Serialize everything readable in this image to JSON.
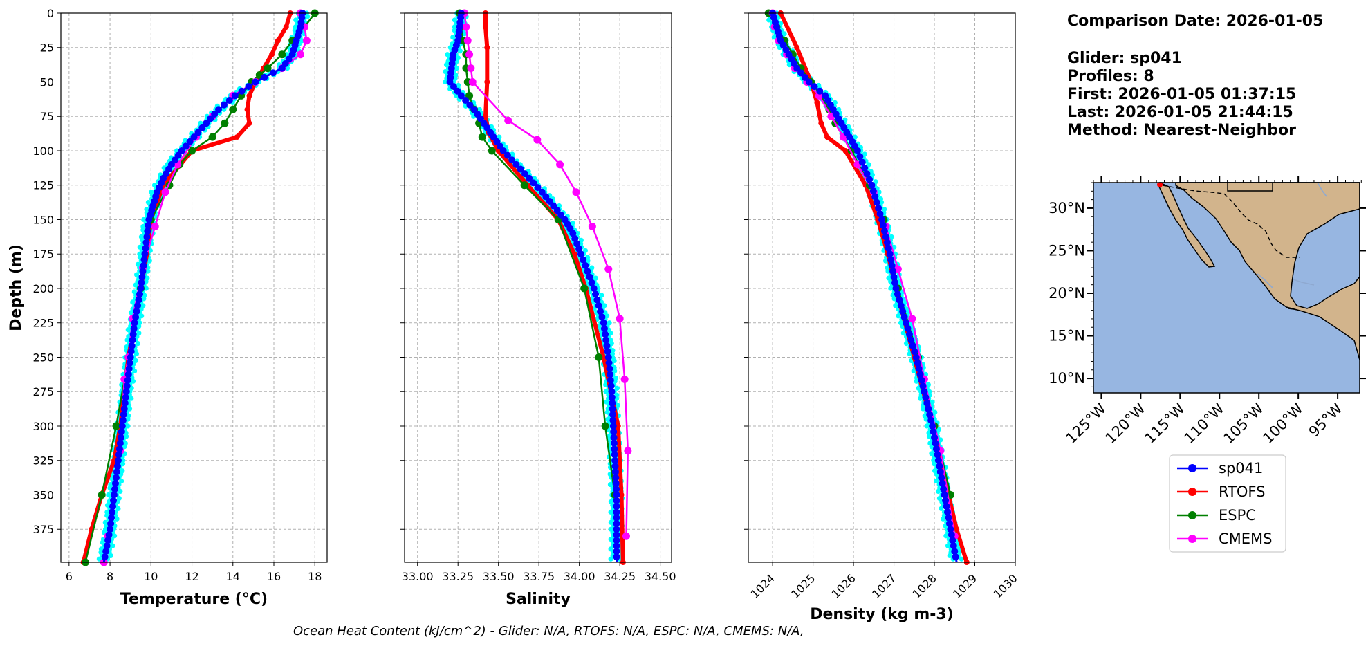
{
  "info": {
    "lines": [
      "Comparison Date: 2026-01-05",
      "",
      "Glider: sp041",
      "Profiles: 8",
      "First: 2026-01-05 01:37:15",
      "Last: 2026-01-05 21:44:15",
      "Method: Nearest-Neighbor"
    ]
  },
  "footer": "Ocean Heat Content (kJ/cm^2) - Glider: N/A,  RTOFS: N/A,  ESPC: N/A,  CMEMS: N/A,",
  "legend": [
    {
      "name": "sp041",
      "color": "#0000ff"
    },
    {
      "name": "RTOFS",
      "color": "#ff0000"
    },
    {
      "name": "ESPC",
      "color": "#008000"
    },
    {
      "name": "CMEMS",
      "color": "#ff00ff"
    }
  ],
  "colors": {
    "glider_raw": "#00ffff",
    "land": "#d2b48c",
    "ocean": "#97b6e1",
    "grid": "#b0b0b0"
  },
  "chart_data": [
    {
      "type": "line",
      "xlabel": "Temperature (°C)",
      "ylabel": "Depth (m)",
      "xlim": [
        5.6,
        18.6
      ],
      "ylim": [
        399,
        0
      ],
      "xticks": [
        6,
        8,
        10,
        12,
        14,
        16,
        18
      ],
      "yticks": [
        0,
        25,
        50,
        75,
        100,
        125,
        150,
        175,
        200,
        225,
        250,
        275,
        300,
        325,
        350,
        375
      ],
      "grid": true,
      "series": [
        {
          "name": "sp041",
          "depth": [
            0,
            10,
            20,
            30,
            40,
            50,
            60,
            70,
            80,
            90,
            100,
            110,
            120,
            130,
            140,
            150,
            175,
            200,
            225,
            250,
            275,
            300,
            325,
            350,
            375,
            399
          ],
          "values": [
            17.4,
            17.3,
            17.1,
            16.9,
            16.4,
            15.1,
            14.1,
            13.3,
            12.7,
            12.1,
            11.5,
            11.0,
            10.6,
            10.3,
            10.1,
            9.9,
            9.7,
            9.5,
            9.2,
            9.0,
            8.8,
            8.6,
            8.4,
            8.2,
            8.0,
            7.7
          ]
        },
        {
          "name": "RTOFS",
          "depth": [
            0,
            10,
            20,
            30,
            40,
            50,
            60,
            70,
            80,
            90,
            100,
            125,
            150,
            175,
            200,
            225,
            250,
            275,
            300,
            325,
            350,
            375,
            399
          ],
          "values": [
            16.8,
            16.6,
            16.2,
            15.9,
            15.5,
            15.1,
            14.8,
            14.7,
            14.8,
            14.2,
            12.0,
            10.6,
            10.0,
            9.8,
            9.5,
            9.2,
            8.9,
            8.7,
            8.5,
            8.2,
            7.6,
            7.1,
            6.7
          ]
        },
        {
          "name": "ESPC",
          "depth": [
            0,
            10,
            20,
            30,
            40,
            45,
            50,
            60,
            70,
            80,
            90,
            100,
            110,
            125,
            150,
            200,
            250,
            300,
            350,
            399
          ],
          "values": [
            18.0,
            17.5,
            16.9,
            16.4,
            15.7,
            15.3,
            14.9,
            14.4,
            14.0,
            13.6,
            13.0,
            12.0,
            11.4,
            10.9,
            10.0,
            9.5,
            8.9,
            8.3,
            7.6,
            6.8
          ]
        },
        {
          "name": "CMEMS",
          "depth": [
            0,
            10,
            20,
            30,
            40,
            50,
            60,
            75,
            90,
            110,
            130,
            155,
            185,
            222,
            250,
            266,
            318,
            380,
            399
          ],
          "values": [
            17.3,
            17.5,
            17.6,
            17.3,
            16.4,
            15.1,
            14.0,
            13.0,
            12.2,
            11.3,
            10.7,
            10.2,
            9.6,
            9.1,
            8.9,
            8.7,
            8.5,
            7.9,
            7.7
          ]
        }
      ]
    },
    {
      "type": "line",
      "xlabel": "Salinity",
      "ylim": [
        399,
        0
      ],
      "xlim": [
        32.92,
        34.57
      ],
      "xticks": [
        33.0,
        33.25,
        33.5,
        33.75,
        34.0,
        34.25,
        34.5
      ],
      "grid": true,
      "series": [
        {
          "name": "sp041",
          "depth": [
            0,
            10,
            20,
            30,
            40,
            50,
            60,
            70,
            80,
            90,
            100,
            110,
            120,
            130,
            140,
            150,
            160,
            175,
            200,
            225,
            250,
            275,
            300,
            325,
            350,
            375,
            399
          ],
          "values": [
            33.27,
            33.26,
            33.25,
            33.22,
            33.21,
            33.2,
            33.27,
            33.35,
            33.41,
            33.47,
            33.53,
            33.61,
            33.69,
            33.77,
            33.84,
            33.91,
            33.96,
            34.01,
            34.09,
            34.15,
            34.18,
            34.2,
            34.21,
            34.22,
            34.23,
            34.23,
            34.23
          ]
        },
        {
          "name": "RTOFS",
          "depth": [
            0,
            10,
            25,
            50,
            75,
            87,
            100,
            125,
            150,
            175,
            200,
            250,
            300,
            350,
            399
          ],
          "values": [
            33.42,
            33.42,
            33.43,
            33.43,
            33.42,
            33.44,
            33.5,
            33.68,
            33.87,
            33.97,
            34.04,
            34.15,
            34.24,
            34.26,
            34.27
          ]
        },
        {
          "name": "ESPC",
          "depth": [
            0,
            10,
            20,
            30,
            40,
            50,
            60,
            70,
            80,
            90,
            100,
            125,
            150,
            200,
            250,
            300,
            350
          ],
          "values": [
            33.26,
            33.27,
            33.28,
            33.3,
            33.3,
            33.31,
            33.32,
            33.35,
            33.38,
            33.4,
            33.46,
            33.66,
            33.87,
            34.03,
            34.12,
            34.16,
            34.22
          ]
        },
        {
          "name": "CMEMS",
          "depth": [
            0,
            10,
            20,
            30,
            40,
            50,
            78,
            92,
            110,
            130,
            155,
            186,
            222,
            266,
            318,
            380
          ],
          "values": [
            33.29,
            33.3,
            33.31,
            33.32,
            33.33,
            33.34,
            33.56,
            33.74,
            33.88,
            33.98,
            34.08,
            34.18,
            34.25,
            34.28,
            34.3,
            34.29
          ]
        }
      ]
    },
    {
      "type": "line",
      "xlabel": "Density (kg m-3)",
      "ylim": [
        399,
        0
      ],
      "xlim": [
        1023.4,
        1030.0
      ],
      "xticks": [
        1024,
        1025,
        1026,
        1027,
        1028,
        1029,
        1030
      ],
      "grid": true,
      "series": [
        {
          "name": "sp041",
          "depth": [
            0,
            10,
            20,
            30,
            40,
            50,
            60,
            70,
            80,
            90,
            100,
            125,
            150,
            175,
            200,
            225,
            250,
            275,
            300,
            325,
            350,
            375,
            399
          ],
          "values": [
            1024.0,
            1024.1,
            1024.2,
            1024.4,
            1024.6,
            1024.9,
            1025.3,
            1025.5,
            1025.7,
            1025.9,
            1026.1,
            1026.45,
            1026.7,
            1026.9,
            1027.05,
            1027.3,
            1027.55,
            1027.75,
            1027.95,
            1028.1,
            1028.25,
            1028.4,
            1028.55
          ]
        },
        {
          "name": "RTOFS",
          "depth": [
            0,
            25,
            50,
            65,
            80,
            90,
            100,
            125,
            150,
            175,
            200,
            250,
            300,
            350,
            375,
            399
          ],
          "values": [
            1024.2,
            1024.6,
            1024.95,
            1025.1,
            1025.2,
            1025.35,
            1025.8,
            1026.3,
            1026.6,
            1026.85,
            1027.05,
            1027.5,
            1027.95,
            1028.35,
            1028.55,
            1028.8
          ]
        },
        {
          "name": "ESPC",
          "depth": [
            0,
            10,
            20,
            30,
            40,
            50,
            60,
            70,
            80,
            90,
            100,
            125,
            150,
            200,
            250,
            300,
            350
          ],
          "values": [
            1023.9,
            1024.1,
            1024.3,
            1024.5,
            1024.7,
            1024.95,
            1025.2,
            1025.4,
            1025.55,
            1025.75,
            1025.95,
            1026.4,
            1026.75,
            1027.1,
            1027.6,
            1028.0,
            1028.4
          ]
        },
        {
          "name": "CMEMS",
          "depth": [
            0,
            10,
            20,
            30,
            40,
            50,
            60,
            75,
            90,
            110,
            130,
            155,
            186,
            222,
            266,
            318,
            380
          ],
          "values": [
            1024.0,
            1024.05,
            1024.15,
            1024.35,
            1024.55,
            1024.85,
            1025.15,
            1025.45,
            1025.75,
            1026.1,
            1026.5,
            1026.8,
            1027.1,
            1027.45,
            1027.75,
            1028.15,
            1028.5
          ]
        }
      ]
    },
    {
      "type": "map",
      "lon_ticks": [
        "125°W",
        "120°W",
        "115°W",
        "110°W",
        "105°W",
        "100°W",
        "95°W"
      ],
      "lat_ticks": [
        "30°N",
        "25°N",
        "20°N",
        "15°N",
        "10°N"
      ],
      "lon_values": [
        -125,
        -120,
        -115,
        -110,
        -105,
        -100,
        -95
      ],
      "lat_values": [
        30,
        25,
        20,
        15,
        10
      ],
      "lon_range": [
        -126,
        -92.2
      ],
      "lat_range": [
        8.3,
        33
      ]
    }
  ]
}
